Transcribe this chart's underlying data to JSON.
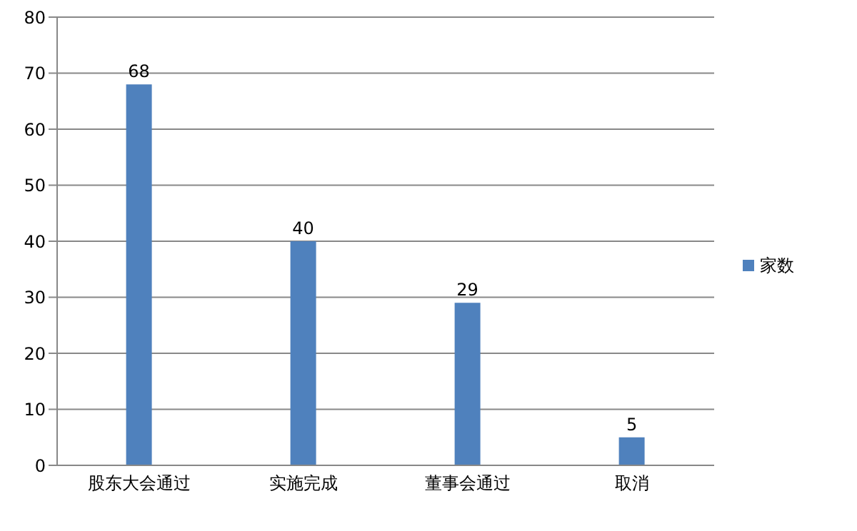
{
  "chart_data": {
    "type": "bar",
    "categories": [
      "股东大会通过",
      "实施完成",
      "董事会通过",
      "取消"
    ],
    "series": [
      {
        "name": "家数",
        "color": "#4f81bd",
        "values": [
          68,
          40,
          29,
          5
        ]
      }
    ],
    "ylim": [
      0,
      80
    ],
    "yticks": [
      0,
      10,
      20,
      30,
      40,
      50,
      60,
      70,
      80
    ],
    "grid": "y",
    "legend": "right",
    "data_labels": true
  }
}
